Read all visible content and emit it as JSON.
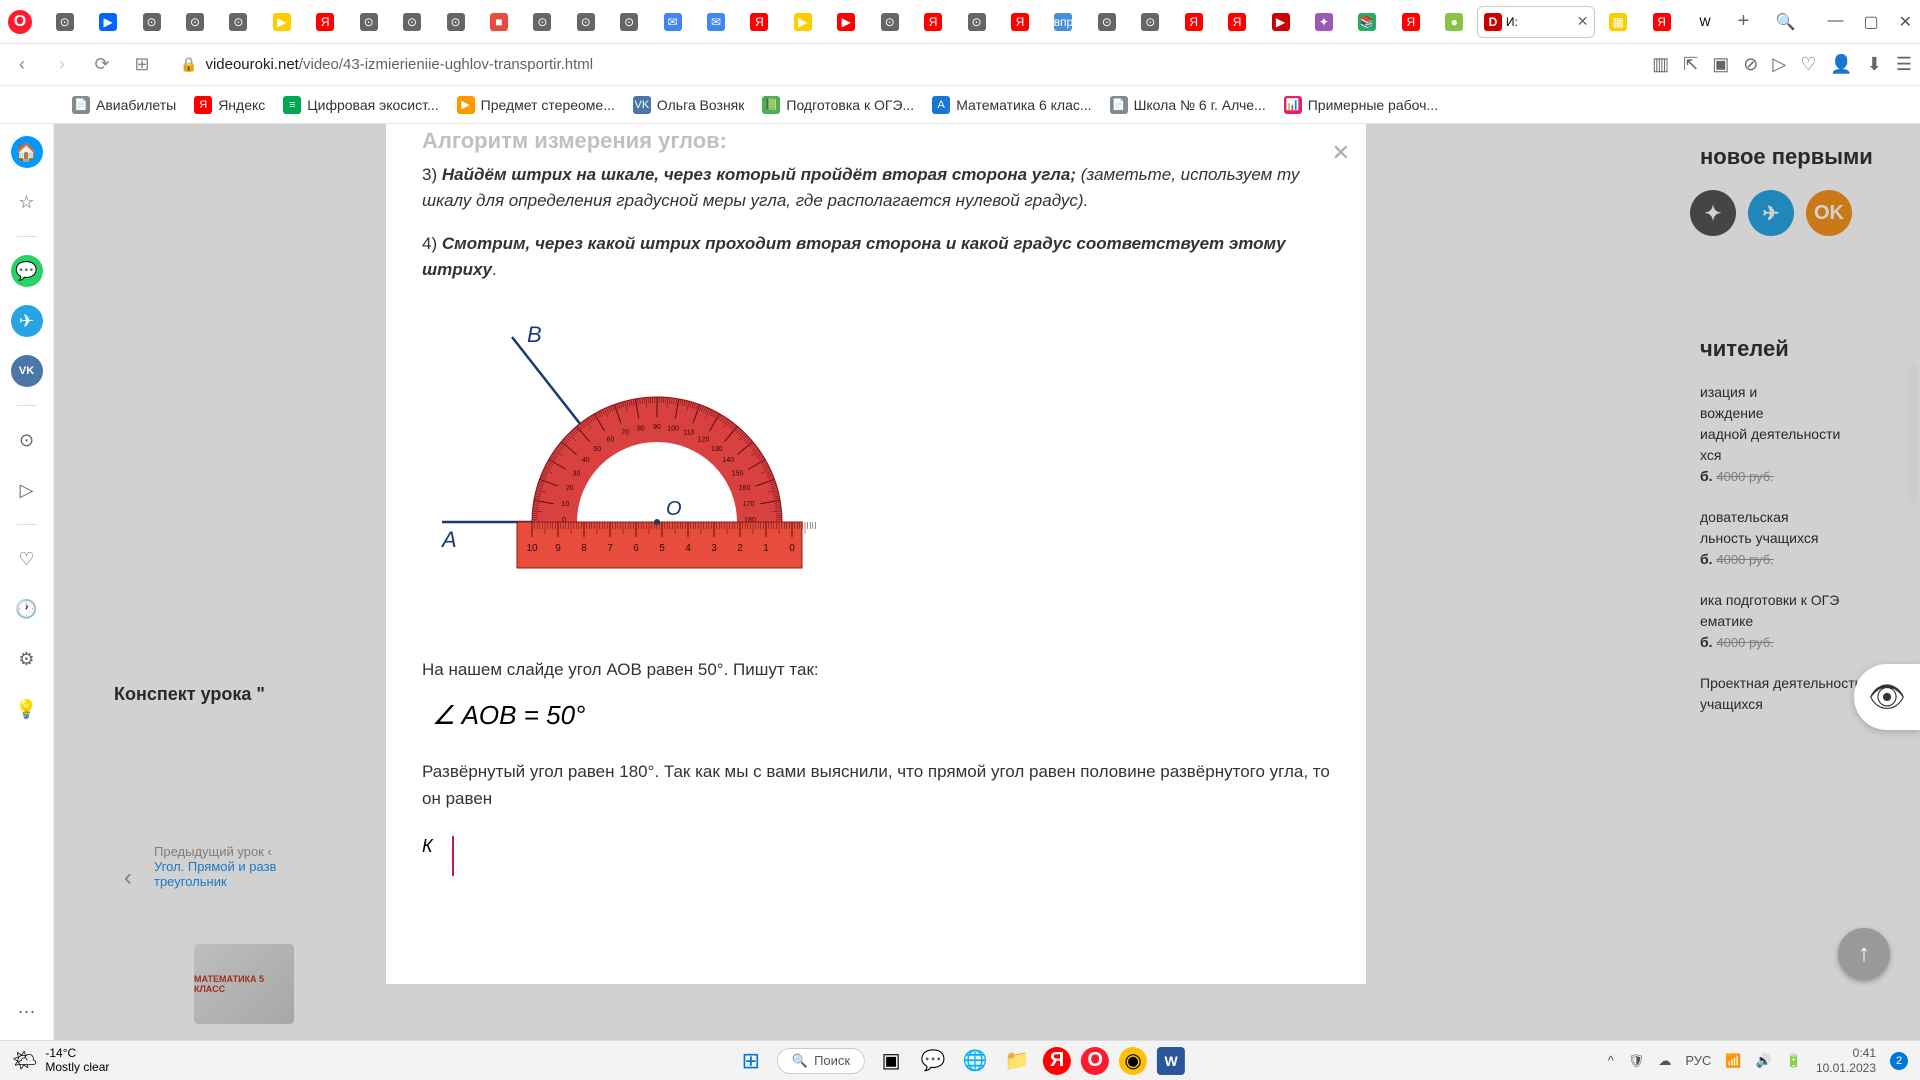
{
  "titlebar": {
    "active_tab_label": "И:",
    "search_icon": "🔍"
  },
  "tabs_icons": [
    {
      "bg": "#666",
      "txt": "⊙"
    },
    {
      "bg": "#0066ff",
      "txt": "▶"
    },
    {
      "bg": "#666",
      "txt": "⊙"
    },
    {
      "bg": "#666",
      "txt": "⊙"
    },
    {
      "bg": "#666",
      "txt": "⊙"
    },
    {
      "bg": "#ffcc00",
      "txt": "▶"
    },
    {
      "bg": "#ff0000",
      "txt": "Я"
    },
    {
      "bg": "#666",
      "txt": "⊙"
    },
    {
      "bg": "#666",
      "txt": "⊙"
    },
    {
      "bg": "#666",
      "txt": "⊙"
    },
    {
      "bg": "#e74c3c",
      "txt": "■"
    },
    {
      "bg": "#666",
      "txt": "⊙"
    },
    {
      "bg": "#666",
      "txt": "⊙"
    },
    {
      "bg": "#666",
      "txt": "⊙"
    },
    {
      "bg": "#4285f4",
      "txt": "✉"
    },
    {
      "bg": "#4285f4",
      "txt": "✉"
    },
    {
      "bg": "#ff0000",
      "txt": "Я"
    },
    {
      "bg": "#ffcc00",
      "txt": "▶"
    },
    {
      "bg": "#ff0000",
      "txt": "▶"
    },
    {
      "bg": "#666",
      "txt": "⊙"
    },
    {
      "bg": "#ff0000",
      "txt": "Я"
    },
    {
      "bg": "#666",
      "txt": "⊙"
    },
    {
      "bg": "#ff0000",
      "txt": "Я"
    },
    {
      "bg": "#4a90d9",
      "txt": "впр"
    },
    {
      "bg": "#666",
      "txt": "⊙"
    },
    {
      "bg": "#666",
      "txt": "⊙"
    },
    {
      "bg": "#ff0000",
      "txt": "Я"
    },
    {
      "bg": "#ff0000",
      "txt": "Я"
    },
    {
      "bg": "#cc0000",
      "txt": "▶"
    },
    {
      "bg": "#9b59b6",
      "txt": "✦"
    },
    {
      "bg": "#27ae60",
      "txt": "📚"
    },
    {
      "bg": "#ff0000",
      "txt": "Я"
    },
    {
      "bg": "#8bc34a",
      "txt": "●"
    }
  ],
  "addrbar": {
    "url_domain": "videouroki.net",
    "url_path": "/video/43-izmierieniie-ughlov-transportir.html"
  },
  "bookmarks": [
    {
      "ico": "📄",
      "bg": "#888",
      "label": "Авиабилеты"
    },
    {
      "ico": "Я",
      "bg": "#ff0000",
      "label": "Яндекс"
    },
    {
      "ico": "≡",
      "bg": "#00a651",
      "label": "Цифровая экосист..."
    },
    {
      "ico": "▶",
      "bg": "#ff9800",
      "label": "Предмет стереоме..."
    },
    {
      "ico": "VK",
      "bg": "#4a76a8",
      "label": "Ольга Возняк"
    },
    {
      "ico": "📗",
      "bg": "#4caf50",
      "label": "Подготовка к ОГЭ..."
    },
    {
      "ico": "А",
      "bg": "#1976d2",
      "label": "Математика 6 клас..."
    },
    {
      "ico": "📄",
      "bg": "#888",
      "label": "Школа № 6 г. Алче..."
    },
    {
      "ico": "📊",
      "bg": "#e91e63",
      "label": "Примерные рабоч..."
    }
  ],
  "leftbar": {
    "home": "🏠",
    "star": "☆",
    "whatsapp": "💬",
    "telegram": "✈",
    "vk": "VK",
    "play": "⊙",
    "send": "▷",
    "heart": "♡",
    "clock": "🕐",
    "gear": "⚙",
    "bulb": "💡",
    "more": "⋯"
  },
  "modal": {
    "algorithm_title": "Алгоритм измерения углов:",
    "step3_num": "3)",
    "step3_bold": "Найдём штрих на шкале, через который пройдёт вторая сторона угла;",
    "step3_rest": " (заметьте, используем ту шкалу для определения градусной меры угла, где располагается нулевой градус).",
    "step4_num": "4)  ",
    "step4_bold": "Смотрим, через какой штрих проходит вторая сторона и какой градус соответствует этому штриху",
    "step4_end": ".",
    "after_img": "На нашем слайде угол АОВ равен 50°. Пишут так:",
    "formula": "∠ AOB = 50°",
    "para_unfold": "Развёрнутый угол равен 180°. Так как мы с вами выяснили, что прямой угол равен половине развёрнутого угла, то он равен",
    "k_label": "К",
    "labels": {
      "A": "А",
      "B": "В",
      "O": "О"
    }
  },
  "bg_page": {
    "konspekt": "Конспект урока \"",
    "prev_title": "Предыдущий урок ‹",
    "prev_link1": "Угол. Прямой и разв",
    "prev_link2": "треугольник",
    "dvd": "МАТЕМАТИКА\n5 КЛАСС",
    "heading1": "новое первыми",
    "heading2": "чителей",
    "teachers": [
      {
        "line1": "изация и",
        "line2": "вождение",
        "line3": "иадной деятельности",
        "line4": "хся",
        "price": "б.",
        "old": "4000 руб."
      },
      {
        "line1": "довательская",
        "line2": "льность учащихся",
        "price": "б.",
        "old": "4000 руб."
      },
      {
        "line1": "ика подготовки к ОГЭ",
        "line2": "ематике",
        "price": "б.",
        "old": "4000 руб."
      },
      {
        "line1": "Проектная деятельность",
        "line2": "учащихся",
        "price": "",
        "old": ""
      }
    ],
    "socials": [
      {
        "bg": "#555",
        "txt": "✦"
      },
      {
        "bg": "#28a4e4",
        "txt": "✈"
      },
      {
        "bg": "#f7931e",
        "txt": "OK"
      }
    ]
  },
  "protractor": {
    "colors": {
      "body": "#d94040",
      "darker": "#b82e2e",
      "ruler": "#e74c3c",
      "line": "#1a3a6e"
    },
    "angle_deg": 50
  },
  "taskbar": {
    "temp": "-14°C",
    "cond": "Mostly clear",
    "search": "Поиск",
    "lang": "РУС",
    "time": "0:41",
    "date": "10.01.2023",
    "notif": "2"
  }
}
